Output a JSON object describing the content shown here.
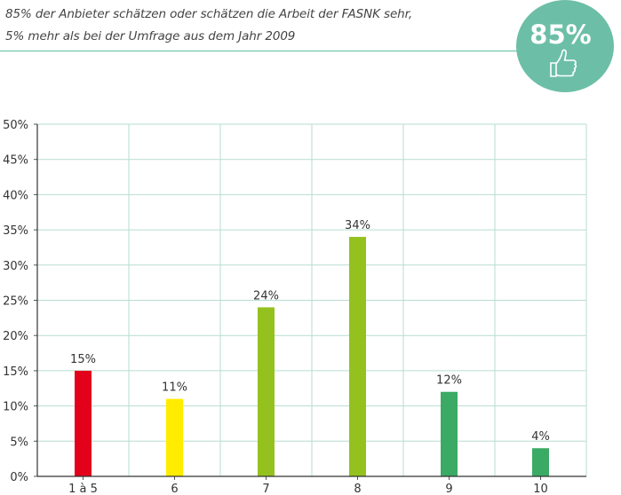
{
  "header": {
    "line1": "85% der Anbieter schätzen oder schätzen die Arbeit der FASNK sehr,",
    "line2": "5% mehr als bei der Umfrage aus dem Jahr 2009"
  },
  "badge": {
    "value": "85%",
    "icon": "thumbs-up-icon",
    "color": "#6cbfa6"
  },
  "chart_data": {
    "type": "bar",
    "categories": [
      "1 à 5",
      "6",
      "7",
      "8",
      "9",
      "10"
    ],
    "values": [
      15,
      11,
      24,
      34,
      12,
      4
    ],
    "labels": [
      "15%",
      "11%",
      "24%",
      "34%",
      "12%",
      "4%"
    ],
    "colors": [
      "#e2001a",
      "#ffec00",
      "#95c11f",
      "#95c11f",
      "#3aaa64",
      "#3aaa64"
    ],
    "y_ticks": [
      "0%",
      "5%",
      "10%",
      "15%",
      "20%",
      "25%",
      "30%",
      "35%",
      "40%",
      "45%",
      "50%"
    ],
    "ylim": [
      0,
      50
    ],
    "grid": true,
    "title": "",
    "xlabel": "",
    "ylabel": ""
  }
}
